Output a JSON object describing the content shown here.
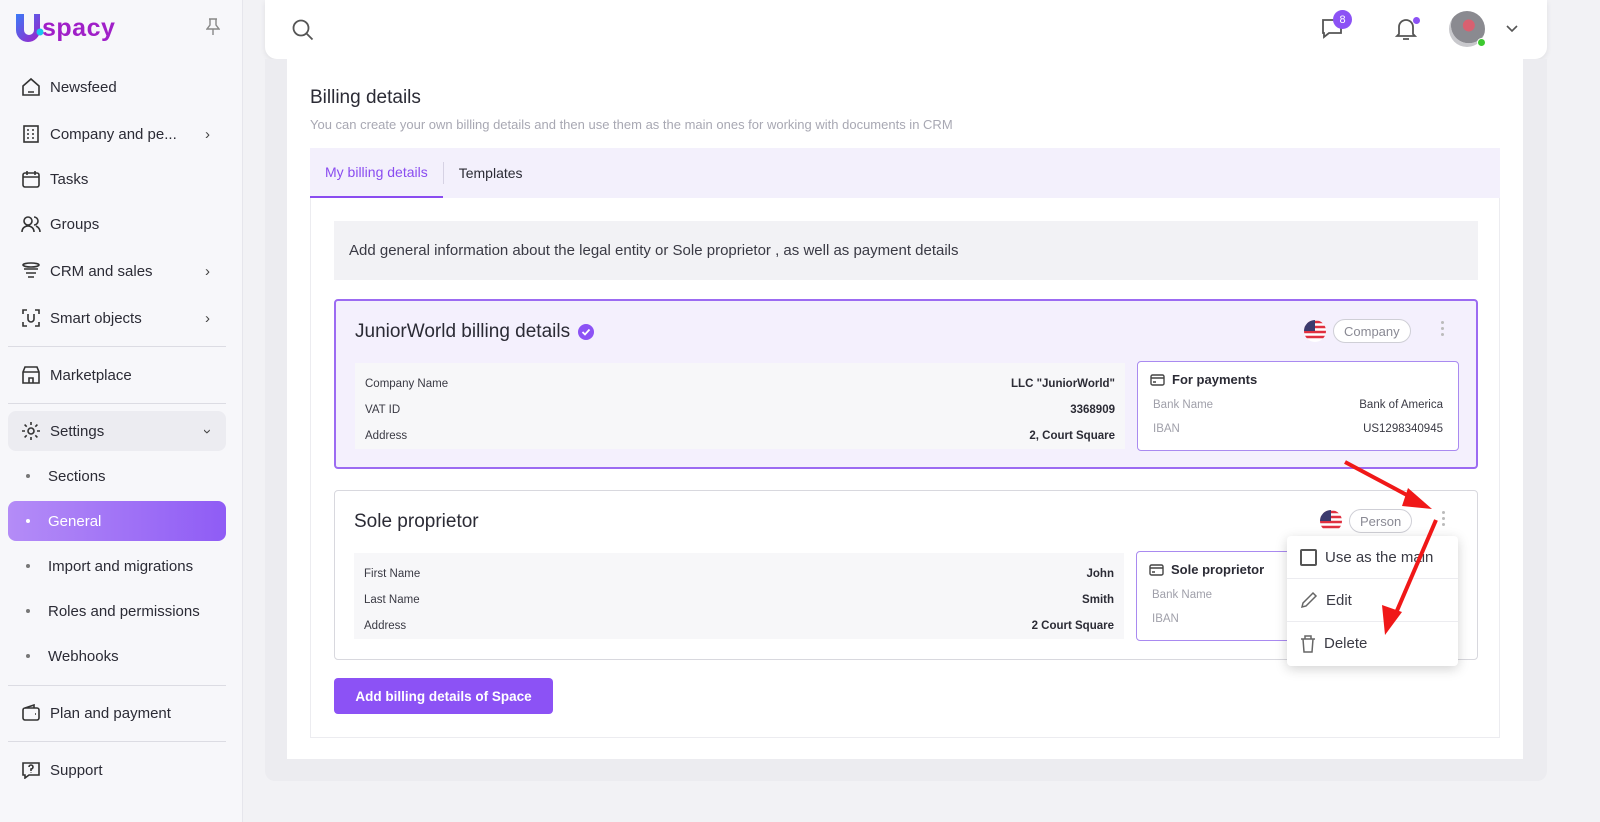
{
  "app": {
    "logo_text": "spacy",
    "logo_letter": "U"
  },
  "sidebar": {
    "items": [
      {
        "label": "Newsfeed",
        "icon": "home-icon"
      },
      {
        "label": "Company and pe...",
        "icon": "building-icon"
      },
      {
        "label": "Tasks",
        "icon": "calendar-icon"
      },
      {
        "label": "Groups",
        "icon": "users-icon"
      },
      {
        "label": "CRM and sales",
        "icon": "funnel-icon"
      },
      {
        "label": "Smart objects",
        "icon": "smart-object-icon"
      },
      {
        "label": "Marketplace",
        "icon": "store-icon"
      },
      {
        "label": "Settings",
        "icon": "gear-icon"
      },
      {
        "label": "Plan and payment",
        "icon": "wallet-icon"
      },
      {
        "label": "Support",
        "icon": "help-icon"
      }
    ],
    "settings_sub": [
      "Sections",
      "General",
      "Import and migrations",
      "Roles and permissions",
      "Webhooks"
    ],
    "active": "General"
  },
  "header": {
    "messages_count": "8",
    "accent": "#8c52f5"
  },
  "page": {
    "title": "Billing details",
    "subtitle": "You can create your own billing details and then use them as the main ones for working with documents in CRM",
    "tabs": [
      "My billing details",
      "Templates"
    ],
    "active_tab": "My billing details",
    "info": "Add general information about the legal entity or Sole proprietor , as well as payment details",
    "add_button": "Add billing details of Space"
  },
  "cards": [
    {
      "title": "JuniorWorld billing details",
      "verified": true,
      "type": "Company",
      "is_main": true,
      "fields": [
        {
          "k": "Company Name",
          "v": "LLC \"JuniorWorld\""
        },
        {
          "k": "VAT ID",
          "v": "3368909"
        },
        {
          "k": "Address",
          "v": "2, Court Square"
        }
      ],
      "payment": {
        "title": "For payments",
        "fields": [
          {
            "k": "Bank Name",
            "v": "Bank of America"
          },
          {
            "k": "IBAN",
            "v": "US1298340945"
          }
        ]
      }
    },
    {
      "title": "Sole proprietor",
      "type": "Person",
      "is_main": false,
      "fields": [
        {
          "k": "First Name",
          "v": "John"
        },
        {
          "k": "Last Name",
          "v": "Smith"
        },
        {
          "k": "Address",
          "v": "2 Court Square"
        }
      ],
      "payment": {
        "title": "Sole proprietor",
        "fields": [
          {
            "k": "Bank Name"
          },
          {
            "k": "IBAN"
          }
        ]
      }
    }
  ],
  "context_menu": [
    "Use as the main",
    "Edit",
    "Delete"
  ]
}
